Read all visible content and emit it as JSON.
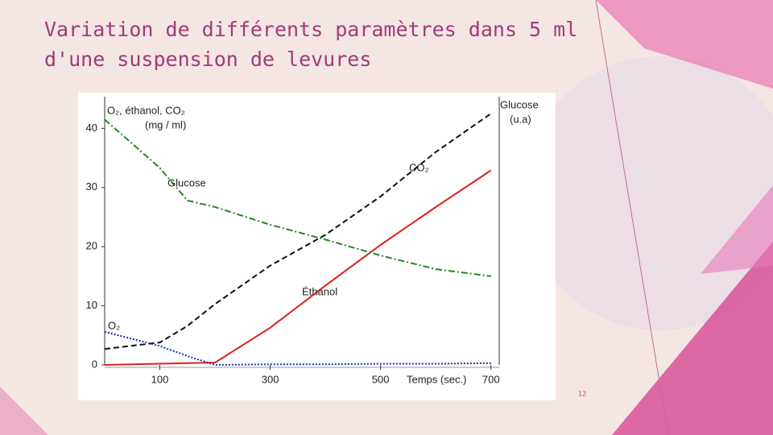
{
  "title_lines": [
    "Variation de différents paramètres dans 5 ml",
    "d'une suspension de levures"
  ],
  "page_number": "12",
  "chart_data": {
    "type": "line",
    "ylabel": [
      "O₂, éthanol, CO₂",
      "(mg / ml)"
    ],
    "y2label": [
      "Glucose",
      "(u.a)"
    ],
    "xlabel": "Temps (sec.)",
    "x": [
      0,
      100,
      150,
      200,
      300,
      400,
      500,
      600,
      700
    ],
    "xlim": [
      0,
      715
    ],
    "xticks": [
      100,
      300,
      500,
      700
    ],
    "ylim": [
      0,
      44
    ],
    "yticks": [
      0,
      10,
      20,
      30,
      40
    ],
    "y2lim": [
      0,
      44
    ],
    "series": [
      {
        "name": "CO₂",
        "color": "#111111",
        "dash": "dashed",
        "values": [
          2.7,
          3.8,
          6.6,
          10.3,
          16.8,
          22,
          28.5,
          36,
          42.5
        ]
      },
      {
        "name": "Éthanol",
        "color": "#e0201c",
        "dash": "solid",
        "values": [
          0,
          0.2,
          0.3,
          0.4,
          6.3,
          13.4,
          20.3,
          26.7,
          32.9
        ]
      },
      {
        "name": "O₂",
        "color": "#1a2fb0",
        "dash": "dotted",
        "values": [
          5.6,
          3.2,
          1.5,
          0,
          0.1,
          0.1,
          0.2,
          0.2,
          0.3
        ]
      },
      {
        "name": "Glucose",
        "color": "#1f8a1f",
        "dash": "dashdot",
        "axis": "y2",
        "values": [
          41.5,
          33.3,
          27.8,
          26.7,
          23.7,
          21.2,
          18.5,
          16.2,
          15
        ]
      }
    ]
  }
}
